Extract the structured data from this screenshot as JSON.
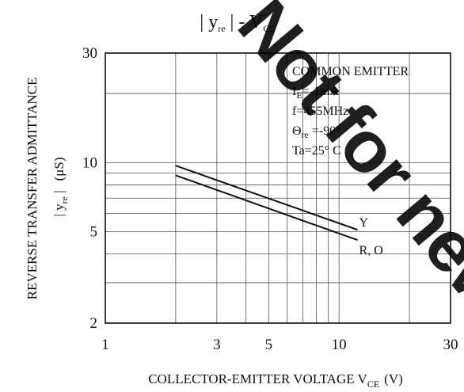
{
  "chart_data": {
    "type": "line",
    "title": {
      "p1": "| y",
      "sub": "re",
      "p2": " |   -  V",
      "sub2": "CE"
    },
    "xlabel": {
      "main": "COLLECTOR-EMITTER VOLTAGE V",
      "sub": "CE",
      "unit": "(V)"
    },
    "ylabel": {
      "main": "REVERSE TRANSFER ADMITTANCE",
      "p1": "| y",
      "sub": "re",
      "p2": " |",
      "unit": "(μS)"
    },
    "x_scale": "log",
    "y_scale": "log",
    "xlim": [
      1,
      30
    ],
    "ylim": [
      2,
      30
    ],
    "x_ticks": [
      1,
      3,
      5,
      10,
      30
    ],
    "y_ticks": [
      2,
      5,
      10,
      30
    ],
    "x_tick_labels": [
      "1",
      "3",
      "5",
      "10",
      "30"
    ],
    "y_tick_labels": [
      "2",
      "5",
      "10",
      "30"
    ],
    "grid": true,
    "annotation": {
      "title": "COMMON EMITTER",
      "ie_p1": "I",
      "ie_sub": "E",
      "ie_p2": "=-1mA",
      "freq": "f=455MHz",
      "theta_p1": "Θ",
      "theta_sub": "re",
      "theta_p2": " =-90°",
      "ta": "Ta=25° C"
    },
    "series": [
      {
        "name": "Y",
        "x": [
          2,
          12
        ],
        "y": [
          9.7,
          5.1
        ]
      },
      {
        "name": "R, O",
        "x": [
          2,
          12
        ],
        "y": [
          8.8,
          4.6
        ]
      }
    ]
  },
  "watermark": {
    "text": "Not for new"
  },
  "colors": {
    "line": "#111111",
    "grid": "#555555"
  }
}
